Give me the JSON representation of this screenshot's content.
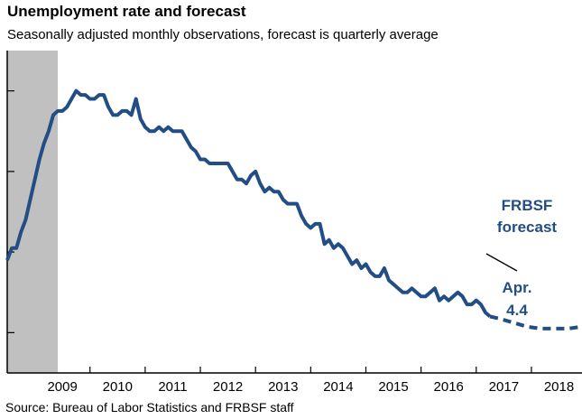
{
  "colors": {
    "series": "#234e85",
    "recession": "#c0c0c0",
    "axis": "#000000"
  },
  "chart_data": {
    "type": "line",
    "title": "Unemployment rate and forecast",
    "subtitle": "Seasonally adjusted monthly observations, forecast is quarterly average",
    "source": "Source: Bureau of Labor Statistics and FRBSF staff",
    "x_tick_labels": [
      "2009",
      "2010",
      "2011",
      "2012",
      "2013",
      "2014",
      "2015",
      "2016",
      "2017",
      "2018"
    ],
    "xlim": [
      "2008-07",
      "2018-12"
    ],
    "ylim": [
      3,
      11
    ],
    "y_tick_values": [
      4,
      6,
      8,
      10
    ],
    "y_tick_labels_shown": false,
    "recession_shading": {
      "start": "2008-07",
      "end": "2009-06"
    },
    "annotations": {
      "forecast_line1": "FRBSF",
      "forecast_line2": "forecast",
      "latest_line1": "Apr.",
      "latest_line2": "4.4"
    },
    "series": [
      {
        "style": "solid",
        "x": [
          "2008-07",
          "2008-08",
          "2008-09",
          "2008-10",
          "2008-11",
          "2008-12",
          "2009-01",
          "2009-02",
          "2009-03",
          "2009-04",
          "2009-05",
          "2009-06",
          "2009-07",
          "2009-08",
          "2009-09",
          "2009-10",
          "2009-11",
          "2009-12",
          "2010-01",
          "2010-02",
          "2010-03",
          "2010-04",
          "2010-05",
          "2010-06",
          "2010-07",
          "2010-08",
          "2010-09",
          "2010-10",
          "2010-11",
          "2010-12",
          "2011-01",
          "2011-02",
          "2011-03",
          "2011-04",
          "2011-05",
          "2011-06",
          "2011-07",
          "2011-08",
          "2011-09",
          "2011-10",
          "2011-11",
          "2011-12",
          "2012-01",
          "2012-02",
          "2012-03",
          "2012-04",
          "2012-05",
          "2012-06",
          "2012-07",
          "2012-08",
          "2012-09",
          "2012-10",
          "2012-11",
          "2012-12",
          "2013-01",
          "2013-02",
          "2013-03",
          "2013-04",
          "2013-05",
          "2013-06",
          "2013-07",
          "2013-08",
          "2013-09",
          "2013-10",
          "2013-11",
          "2013-12",
          "2014-01",
          "2014-02",
          "2014-03",
          "2014-04",
          "2014-05",
          "2014-06",
          "2014-07",
          "2014-08",
          "2014-09",
          "2014-10",
          "2014-11",
          "2014-12",
          "2015-01",
          "2015-02",
          "2015-03",
          "2015-04",
          "2015-05",
          "2015-06",
          "2015-07",
          "2015-08",
          "2015-09",
          "2015-10",
          "2015-11",
          "2015-12",
          "2016-01",
          "2016-02",
          "2016-03",
          "2016-04",
          "2016-05",
          "2016-06",
          "2016-07",
          "2016-08",
          "2016-09",
          "2016-10",
          "2016-11",
          "2016-12",
          "2017-01",
          "2017-02",
          "2017-03",
          "2017-04"
        ],
        "values": [
          5.8,
          6.1,
          6.1,
          6.5,
          6.8,
          7.3,
          7.8,
          8.3,
          8.7,
          9.0,
          9.4,
          9.5,
          9.5,
          9.6,
          9.8,
          10.0,
          9.9,
          9.9,
          9.8,
          9.8,
          9.9,
          9.9,
          9.6,
          9.4,
          9.4,
          9.5,
          9.5,
          9.4,
          9.8,
          9.3,
          9.1,
          9.0,
          9.0,
          9.1,
          9.0,
          9.1,
          9.0,
          9.0,
          9.0,
          8.8,
          8.6,
          8.5,
          8.3,
          8.3,
          8.2,
          8.2,
          8.2,
          8.2,
          8.2,
          8.0,
          7.8,
          7.8,
          7.7,
          7.9,
          8.0,
          7.7,
          7.5,
          7.6,
          7.5,
          7.5,
          7.3,
          7.2,
          7.2,
          7.2,
          6.9,
          6.7,
          6.6,
          6.7,
          6.7,
          6.2,
          6.3,
          6.1,
          6.2,
          6.1,
          5.9,
          5.7,
          5.8,
          5.6,
          5.7,
          5.5,
          5.4,
          5.4,
          5.6,
          5.3,
          5.2,
          5.1,
          5.0,
          5.0,
          5.1,
          5.0,
          4.9,
          4.9,
          5.0,
          5.1,
          4.8,
          4.9,
          4.8,
          4.9,
          5.0,
          4.9,
          4.7,
          4.7,
          4.8,
          4.7,
          4.5,
          4.4
        ]
      },
      {
        "style": "dashed",
        "x": [
          "2017-04",
          "2017-06",
          "2017-09",
          "2017-12",
          "2018-03",
          "2018-06",
          "2018-09",
          "2018-12"
        ],
        "values": [
          4.4,
          4.35,
          4.25,
          4.15,
          4.1,
          4.1,
          4.1,
          4.15
        ]
      }
    ]
  }
}
